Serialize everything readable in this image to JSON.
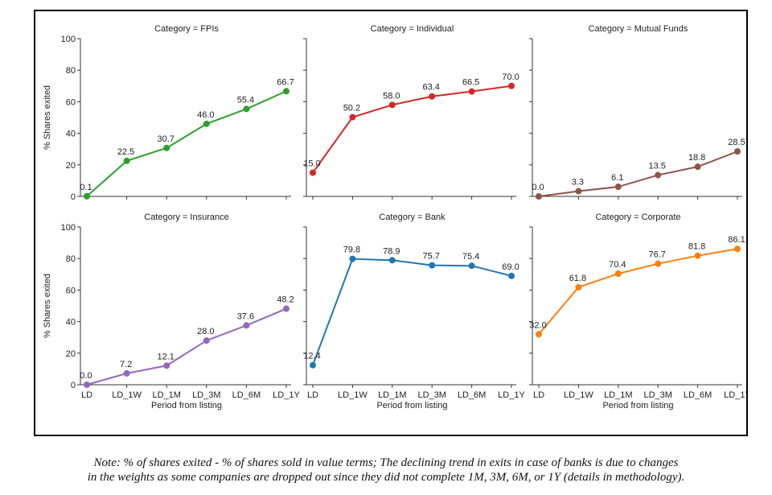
{
  "chart_data": {
    "type": "line",
    "layout": "faceted grid, 2 rows x 3 columns, shared y axis per row",
    "shared_xlabel": "Period from listing",
    "shared_ylabel": "% Shares exited",
    "categories": [
      "LD",
      "LD_1W",
      "LD_1M",
      "LD_3M",
      "LD_6M",
      "LD_1Y"
    ],
    "ylim": [
      0,
      100
    ],
    "yticks": [
      0,
      20,
      40,
      60,
      80,
      100
    ],
    "grid": false,
    "panels": [
      {
        "title": "Category = FPIs",
        "color": "#2ca02c",
        "values": [
          0.1,
          22.5,
          30.7,
          46.0,
          55.4,
          66.7
        ],
        "labels": [
          "0.1",
          "22.5",
          "30.7",
          "46.0",
          "55.4",
          "66.7"
        ]
      },
      {
        "title": "Category = Individual",
        "color": "#d62728",
        "values": [
          15.0,
          50.2,
          58.0,
          63.4,
          66.5,
          70.0
        ],
        "labels": [
          "15.0",
          "50.2",
          "58.0",
          "63.4",
          "66.5",
          "70.0"
        ]
      },
      {
        "title": "Category = Mutual Funds",
        "color": "#8c564b",
        "values": [
          0.0,
          3.3,
          6.1,
          13.5,
          18.8,
          28.5
        ],
        "labels": [
          "0.0",
          "3.3",
          "6.1",
          "13.5",
          "18.8",
          "28.5"
        ]
      },
      {
        "title": "Category = Insurance",
        "color": "#9467bd",
        "values": [
          0.0,
          7.2,
          12.1,
          28.0,
          37.6,
          48.2
        ],
        "labels": [
          "0.0",
          "7.2",
          "12.1",
          "28.0",
          "37.6",
          "48.2"
        ]
      },
      {
        "title": "Category = Bank",
        "color": "#1f77b4",
        "values": [
          12.4,
          79.8,
          78.9,
          75.7,
          75.4,
          69.0
        ],
        "labels": [
          "12.4",
          "79.8",
          "78.9",
          "75.7",
          "75.4",
          "69.0"
        ]
      },
      {
        "title": "Category = Corporate",
        "color": "#ff7f0e",
        "values": [
          32.0,
          61.8,
          70.4,
          76.7,
          81.8,
          86.1
        ],
        "labels": [
          "32.0",
          "61.8",
          "70.4",
          "76.7",
          "81.8",
          "86.1"
        ]
      }
    ]
  },
  "note": {
    "line1": "Note: % of shares exited -  % of shares sold in value terms; The declining trend in exits in case of banks is due to changes",
    "line2": "in the weights as some companies are dropped out since they did not complete 1M, 3M, 6M, or 1Y (details in methodology)."
  }
}
